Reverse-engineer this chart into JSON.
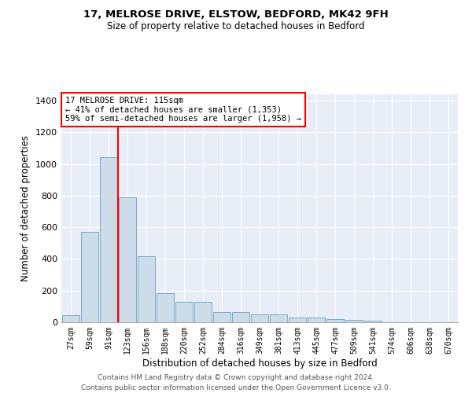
{
  "title1": "17, MELROSE DRIVE, ELSTOW, BEDFORD, MK42 9FH",
  "title2": "Size of property relative to detached houses in Bedford",
  "xlabel": "Distribution of detached houses by size in Bedford",
  "ylabel": "Number of detached properties",
  "bar_color": "#ccdce8",
  "bar_edge_color": "#7aaac8",
  "bg_color": "#e8eef8",
  "grid_color": "#ffffff",
  "categories": [
    "27sqm",
    "59sqm",
    "91sqm",
    "123sqm",
    "156sqm",
    "188sqm",
    "220sqm",
    "252sqm",
    "284sqm",
    "316sqm",
    "349sqm",
    "381sqm",
    "413sqm",
    "445sqm",
    "477sqm",
    "509sqm",
    "541sqm",
    "574sqm",
    "606sqm",
    "638sqm",
    "670sqm"
  ],
  "values": [
    45,
    570,
    1045,
    790,
    415,
    185,
    130,
    130,
    65,
    65,
    50,
    50,
    28,
    28,
    20,
    13,
    10,
    0,
    0,
    0,
    0
  ],
  "ylim": [
    0,
    1440
  ],
  "yticks": [
    0,
    200,
    400,
    600,
    800,
    1000,
    1200,
    1400
  ],
  "red_line_x": 2.5,
  "annotation_line1": "17 MELROSE DRIVE: 115sqm",
  "annotation_line2": "← 41% of detached houses are smaller (1,353)",
  "annotation_line3": "59% of semi-detached houses are larger (1,958) →",
  "footer1": "Contains HM Land Registry data © Crown copyright and database right 2024.",
  "footer2": "Contains public sector information licensed under the Open Government Licence v3.0."
}
